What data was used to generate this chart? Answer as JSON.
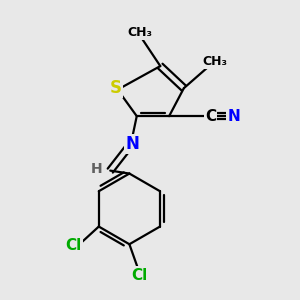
{
  "background_color": "#e8e8e8",
  "atom_colors": {
    "S": "#cccc00",
    "N": "#0000ff",
    "C": "#000000",
    "Cl": "#00aa00",
    "H": "#606060"
  },
  "bond_color": "#000000",
  "bond_width": 1.6,
  "figsize": [
    3.0,
    3.0
  ],
  "dpi": 100,
  "xlim": [
    0,
    10
  ],
  "ylim": [
    0,
    10
  ]
}
